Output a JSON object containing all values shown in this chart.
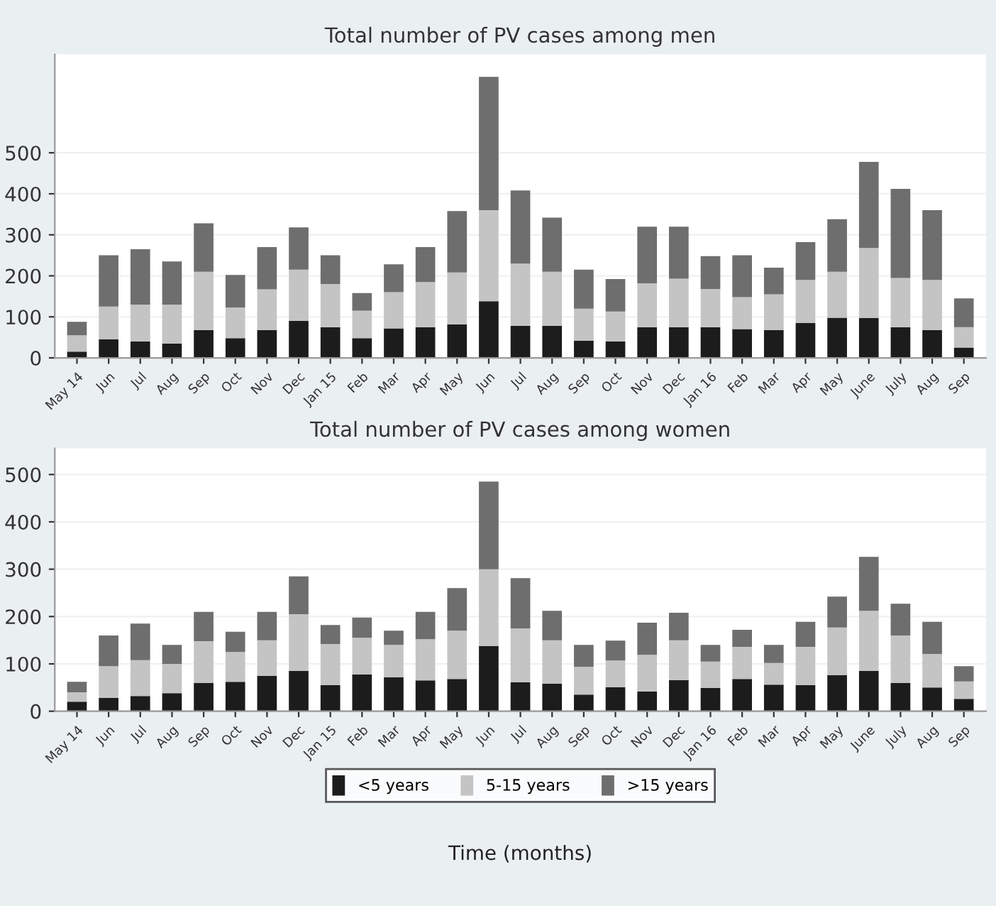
{
  "chart_data": [
    {
      "type": "bar",
      "title": "Total number of PV cases among men",
      "stacked": true,
      "grid": "y",
      "legend": false,
      "categories": [
        "May 14",
        "Jun",
        "Jul",
        "Aug",
        "Sep",
        "Oct",
        "Nov",
        "Dec",
        "Jan 15",
        "Feb",
        "Mar",
        "Apr",
        "May",
        "Jun",
        "Jul",
        "Aug",
        "Sep",
        "Oct",
        "Nov",
        "Dec",
        "Jan 16",
        "Feb",
        "Mar",
        "Apr",
        "May",
        "June",
        "July",
        "Aug",
        "Sep"
      ],
      "ylim": [
        0,
        740
      ],
      "yticks": [
        0,
        100,
        200,
        300,
        400,
        500
      ],
      "series": [
        {
          "color": "#1c1c1c",
          "values": [
            15,
            45,
            40,
            35,
            68,
            48,
            68,
            90,
            75,
            48,
            72,
            75,
            82,
            138,
            78,
            78,
            42,
            40,
            75,
            75,
            75,
            70,
            68,
            85,
            98,
            97,
            75,
            68,
            25
          ]
        },
        {
          "color": "#c4c4c4",
          "values": [
            40,
            80,
            90,
            95,
            142,
            75,
            99,
            125,
            105,
            67,
            88,
            110,
            126,
            222,
            152,
            132,
            78,
            73,
            107,
            118,
            93,
            78,
            87,
            105,
            112,
            171,
            120,
            122,
            50
          ]
        },
        {
          "color": "#6e6e6e",
          "values": [
            33,
            125,
            135,
            105,
            118,
            79,
            103,
            103,
            70,
            43,
            68,
            85,
            150,
            325,
            178,
            132,
            95,
            79,
            138,
            127,
            80,
            102,
            65,
            92,
            128,
            210,
            217,
            170,
            70
          ]
        }
      ]
    },
    {
      "type": "bar",
      "title": "Total number of PV cases among women",
      "xlabel": "Time (months)",
      "stacked": true,
      "grid": "y",
      "legend": "bottom",
      "categories": [
        "May 14",
        "Jun",
        "Jul",
        "Aug",
        "Sep",
        "Oct",
        "Nov",
        "Dec",
        "Jan 15",
        "Feb",
        "Mar",
        "Apr",
        "May",
        "Jun",
        "Jul",
        "Aug",
        "Sep",
        "Oct",
        "Nov",
        "Dec",
        "Jan 16",
        "Feb",
        "Mar",
        "Apr",
        "May",
        "June",
        "July",
        "Aug",
        "Sep"
      ],
      "ylim": [
        0,
        555
      ],
      "yticks": [
        0,
        100,
        200,
        300,
        400,
        500
      ],
      "series": [
        {
          "name": "<5 years",
          "color": "#1c1c1c",
          "values": [
            20,
            28,
            32,
            38,
            60,
            62,
            75,
            85,
            55,
            78,
            72,
            65,
            68,
            138,
            61,
            58,
            35,
            51,
            42,
            66,
            49,
            68,
            56,
            55,
            76,
            85,
            60,
            50,
            26
          ]
        },
        {
          "name": "5-15 years",
          "color": "#c4c4c4",
          "values": [
            20,
            67,
            76,
            62,
            88,
            63,
            75,
            120,
            87,
            77,
            68,
            87,
            102,
            162,
            114,
            92,
            59,
            56,
            77,
            84,
            56,
            68,
            46,
            81,
            101,
            127,
            100,
            71,
            37
          ]
        },
        {
          "name": ">15 years",
          "color": "#6e6e6e",
          "values": [
            22,
            65,
            77,
            40,
            62,
            43,
            60,
            80,
            40,
            43,
            30,
            58,
            90,
            185,
            106,
            62,
            46,
            42,
            68,
            58,
            35,
            36,
            38,
            53,
            65,
            114,
            67,
            68,
            32
          ]
        }
      ]
    }
  ]
}
